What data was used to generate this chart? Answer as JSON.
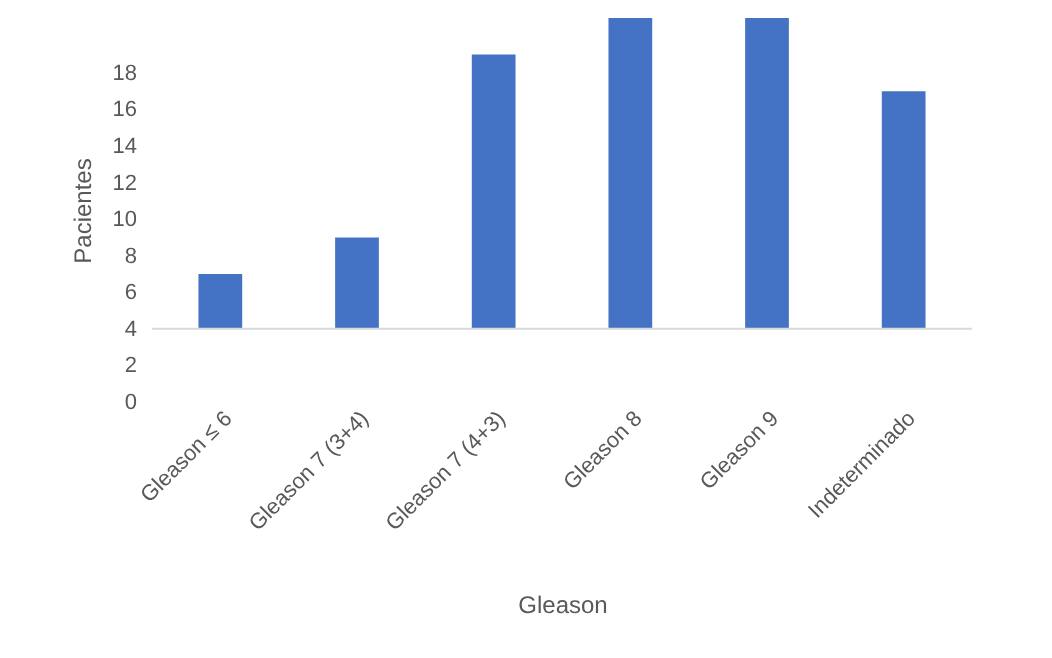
{
  "chart_data": {
    "type": "bar",
    "xlabel": "Gleason",
    "ylabel": "Pacientes",
    "categories": [
      "Gleason ≤ 6",
      "Gleason 7 (3+4)",
      "Gleason 7 (4+3)",
      "Gleason 8",
      "Gleason 9",
      "Indeterminado"
    ],
    "base": [
      4,
      4,
      4,
      4,
      4,
      4
    ],
    "values": [
      3,
      5,
      15,
      17,
      17,
      13
    ],
    "color": "#4472c4",
    "ylim": [
      0,
      21
    ],
    "yticks": [
      0,
      2,
      4,
      6,
      8,
      10,
      12,
      14,
      16,
      18
    ],
    "ref_lines": [
      {
        "axis": "y",
        "value": 4,
        "color": "#d9d9d9"
      }
    ],
    "grid": false
  }
}
